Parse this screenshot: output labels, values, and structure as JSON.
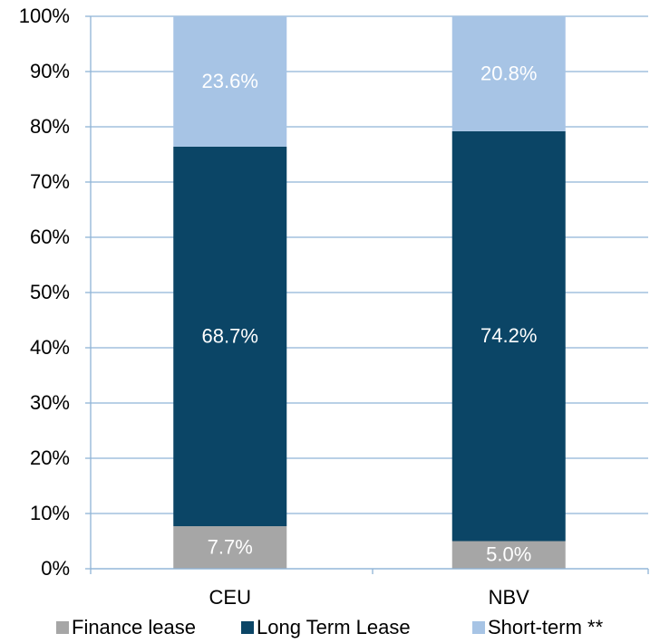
{
  "chart_data": {
    "type": "stacked_bar",
    "categories": [
      "CEU",
      "NBV"
    ],
    "series": [
      {
        "name": "Finance lease",
        "color": "#a6a6a6",
        "values": [
          7.7,
          5.0
        ],
        "value_labels": [
          "7.7%",
          "5.0%"
        ]
      },
      {
        "name": "Long Term Lease",
        "color": "#0b4566",
        "values": [
          68.7,
          74.2
        ],
        "value_labels": [
          "68.7%",
          "74.2%"
        ]
      },
      {
        "name": "Short-term **",
        "color": "#a7c4e5",
        "values": [
          23.6,
          20.8
        ],
        "value_labels": [
          "23.6%",
          "20.8%"
        ]
      }
    ],
    "ylim": [
      0,
      100
    ],
    "yticks": [
      {
        "value": 0,
        "label": "0%"
      },
      {
        "value": 10,
        "label": "10%"
      },
      {
        "value": 20,
        "label": "20%"
      },
      {
        "value": 30,
        "label": "30%"
      },
      {
        "value": 40,
        "label": "40%"
      },
      {
        "value": 50,
        "label": "50%"
      },
      {
        "value": 60,
        "label": "60%"
      },
      {
        "value": 70,
        "label": "70%"
      },
      {
        "value": 80,
        "label": "80%"
      },
      {
        "value": 90,
        "label": "90%"
      },
      {
        "value": 100,
        "label": "100%"
      }
    ],
    "grid": true
  }
}
